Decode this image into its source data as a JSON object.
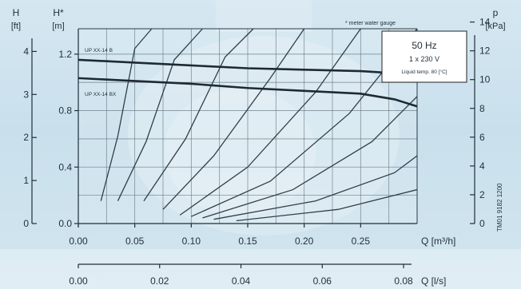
{
  "chart_data": {
    "type": "line",
    "note": "* meter water gauge",
    "infobox": {
      "freq": "50 Hz",
      "supply": "1 x 230 V",
      "liquid": "Liquid temp. 80 [°C]"
    },
    "side_code": "TM01 9182 1200",
    "axes": {
      "left_ft": {
        "label": "H",
        "unit": "[ft]",
        "ticks": [
          "0",
          "1",
          "2",
          "3",
          "4"
        ],
        "range": [
          0,
          4.2
        ]
      },
      "left_m": {
        "label": "H*",
        "unit": "[m]",
        "ticks": [
          "0.0",
          "0.4",
          "0.8",
          "1.2"
        ],
        "range": [
          0,
          1.38
        ]
      },
      "right_kpa": {
        "label": "p",
        "unit": "[kPa]",
        "ticks": [
          "0",
          "2",
          "4",
          "6",
          "8",
          "10",
          "12",
          "14"
        ],
        "range": [
          0,
          15.2
        ]
      },
      "bottom_q": {
        "label": "Q [m³/h]",
        "ticks": [
          "0.00",
          "0.05",
          "0.10",
          "0.15",
          "0.20",
          "0.25"
        ],
        "range": [
          0,
          0.3
        ]
      },
      "bottom_ls": {
        "label": "Q [l/s]",
        "ticks": [
          "0.00",
          "0.02",
          "0.04",
          "0.06",
          "0.08"
        ],
        "range": [
          0,
          0.0867
        ]
      }
    },
    "series": [
      {
        "name": "UP XX-14 B",
        "x": [
          0,
          0.05,
          0.1,
          0.15,
          0.2,
          0.25,
          0.27,
          0.3
        ],
        "y": [
          1.16,
          1.14,
          1.12,
          1.1,
          1.09,
          1.08,
          1.07,
          1.03
        ]
      },
      {
        "name": "UP XX-14 BX",
        "x": [
          0,
          0.05,
          0.1,
          0.15,
          0.2,
          0.25,
          0.28,
          0.3
        ],
        "y": [
          1.03,
          1.01,
          0.99,
          0.96,
          0.94,
          0.92,
          0.88,
          0.83
        ]
      }
    ],
    "system_curves": [
      {
        "x": [
          0.02,
          0.035,
          0.05,
          0.065
        ],
        "y": [
          0.16,
          0.62,
          1.24,
          1.38
        ]
      },
      {
        "x": [
          0.035,
          0.06,
          0.085,
          0.11
        ],
        "y": [
          0.16,
          0.58,
          1.16,
          1.38
        ]
      },
      {
        "x": [
          0.058,
          0.095,
          0.13,
          0.155
        ],
        "y": [
          0.16,
          0.6,
          1.18,
          1.38
        ]
      },
      {
        "x": [
          0.075,
          0.12,
          0.17,
          0.2
        ],
        "y": [
          0.1,
          0.48,
          1.03,
          1.38
        ]
      },
      {
        "x": [
          0.09,
          0.15,
          0.21,
          0.25
        ],
        "y": [
          0.06,
          0.4,
          0.93,
          1.38
        ]
      },
      {
        "x": [
          0.1,
          0.17,
          0.24,
          0.3
        ],
        "y": [
          0.05,
          0.3,
          0.78,
          1.38
        ]
      },
      {
        "x": [
          0.11,
          0.19,
          0.26,
          0.3
        ],
        "y": [
          0.04,
          0.24,
          0.58,
          0.9
        ]
      },
      {
        "x": [
          0.12,
          0.21,
          0.28,
          0.3
        ],
        "y": [
          0.03,
          0.16,
          0.36,
          0.48
        ]
      },
      {
        "x": [
          0.14,
          0.23,
          0.3
        ],
        "y": [
          0.02,
          0.1,
          0.24
        ]
      }
    ]
  }
}
